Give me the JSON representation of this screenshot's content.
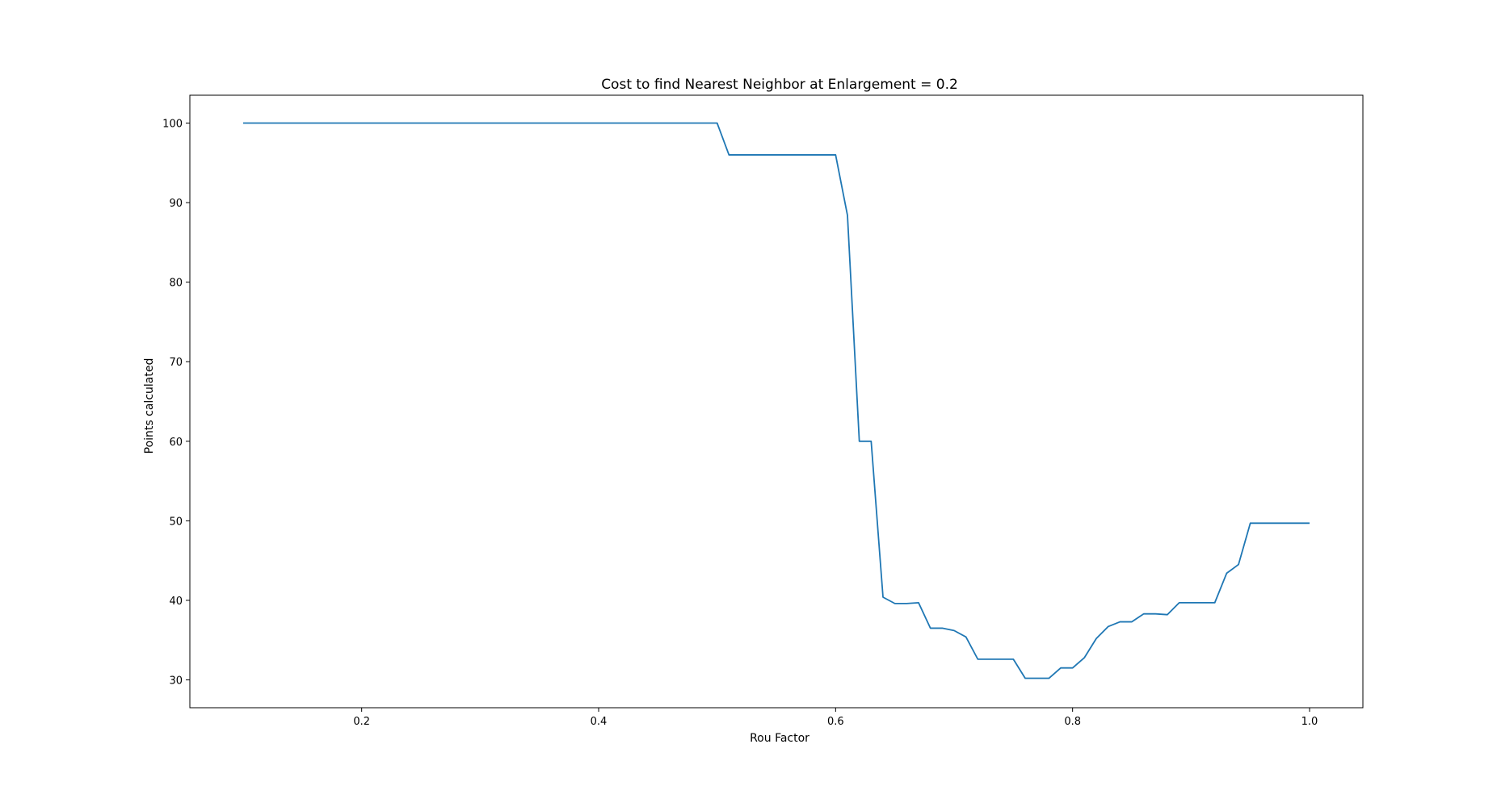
{
  "chart_data": {
    "type": "line",
    "title": "Cost to find Nearest Neighbor at Enlargement = 0.2",
    "xlabel": "Rou Factor",
    "ylabel": "Points calculated",
    "xlim": [
      0.055,
      1.045
    ],
    "ylim": [
      26.5,
      103.5
    ],
    "xticks": [
      0.2,
      0.4,
      0.6,
      0.8,
      1.0
    ],
    "xtick_labels": [
      "0.2",
      "0.4",
      "0.6",
      "0.8",
      "1.0"
    ],
    "yticks": [
      30,
      40,
      50,
      60,
      70,
      80,
      90,
      100
    ],
    "ytick_labels": [
      "30",
      "40",
      "50",
      "60",
      "70",
      "80",
      "90",
      "100"
    ],
    "grid": false,
    "series": [
      {
        "color": "#1f77b4",
        "x": [
          0.1,
          0.11,
          0.12,
          0.13,
          0.14,
          0.15,
          0.16,
          0.17,
          0.18,
          0.19,
          0.2,
          0.21,
          0.22,
          0.23,
          0.24,
          0.25,
          0.26,
          0.27,
          0.28,
          0.29,
          0.3,
          0.31,
          0.32,
          0.33,
          0.34,
          0.35,
          0.36,
          0.37,
          0.38,
          0.39,
          0.4,
          0.41,
          0.42,
          0.43,
          0.44,
          0.45,
          0.46,
          0.47,
          0.48,
          0.49,
          0.5,
          0.51,
          0.52,
          0.53,
          0.54,
          0.55,
          0.56,
          0.57,
          0.58,
          0.59,
          0.6,
          0.61,
          0.62,
          0.63,
          0.64,
          0.65,
          0.66,
          0.67,
          0.68,
          0.69,
          0.7,
          0.71,
          0.72,
          0.73,
          0.74,
          0.75,
          0.76,
          0.77,
          0.78,
          0.79,
          0.8,
          0.81,
          0.82,
          0.83,
          0.84,
          0.85,
          0.86,
          0.87,
          0.88,
          0.89,
          0.9,
          0.91,
          0.92,
          0.93,
          0.94,
          0.95,
          0.96,
          0.97,
          0.98,
          0.99,
          1.0
        ],
        "y": [
          100,
          100,
          100,
          100,
          100,
          100,
          100,
          100,
          100,
          100,
          100,
          100,
          100,
          100,
          100,
          100,
          100,
          100,
          100,
          100,
          100,
          100,
          100,
          100,
          100,
          100,
          100,
          100,
          100,
          100,
          100,
          100,
          100,
          100,
          100,
          100,
          100,
          100,
          100,
          100,
          100,
          96,
          96,
          96,
          96,
          96,
          96,
          96,
          96,
          96,
          96,
          88.4,
          60,
          60,
          40.4,
          39.6,
          39.6,
          39.7,
          36.5,
          36.5,
          36.2,
          35.4,
          32.6,
          32.6,
          32.6,
          32.6,
          30.2,
          30.2,
          30.2,
          31.5,
          31.5,
          32.8,
          35.2,
          36.7,
          37.3,
          37.3,
          38.3,
          38.3,
          38.2,
          39.7,
          39.7,
          39.7,
          39.7,
          43.4,
          44.5,
          49.7,
          49.7,
          49.7,
          49.7,
          49.7,
          49.7
        ]
      }
    ]
  }
}
